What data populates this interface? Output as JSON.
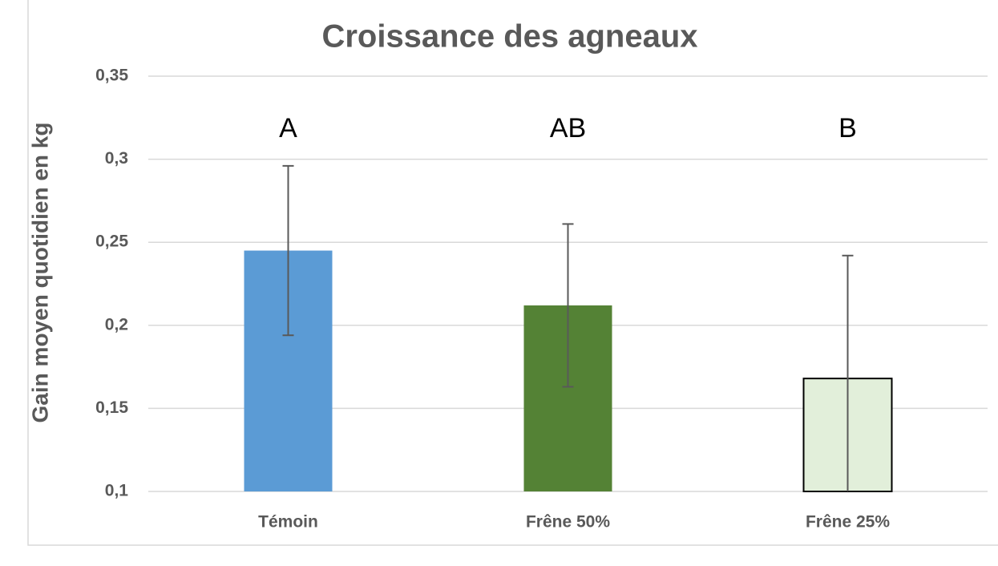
{
  "chart_data": {
    "type": "bar",
    "title": "Croissance des agneaux",
    "y_label": "Gain moyen quotidien en kg",
    "categories": [
      "Témoin",
      "Frêne 50%",
      "Frêne 25%"
    ],
    "values": [
      0.245,
      0.212,
      0.168
    ],
    "errors": [
      0.051,
      0.049,
      0.074
    ],
    "colors": [
      "#5b9bd5",
      "#548235",
      "#e2efda"
    ],
    "annotations": [
      "A",
      "AB",
      "B"
    ],
    "ylim": [
      0.1,
      0.35
    ],
    "yticks": [
      {
        "value": 0.1,
        "label": "0,1"
      },
      {
        "value": 0.15,
        "label": "0,15"
      },
      {
        "value": 0.2,
        "label": "0,2"
      },
      {
        "value": 0.25,
        "label": "0,25"
      },
      {
        "value": 0.3,
        "label": "0,3"
      },
      {
        "value": 0.35,
        "label": "0,35"
      }
    ],
    "grid": true
  }
}
